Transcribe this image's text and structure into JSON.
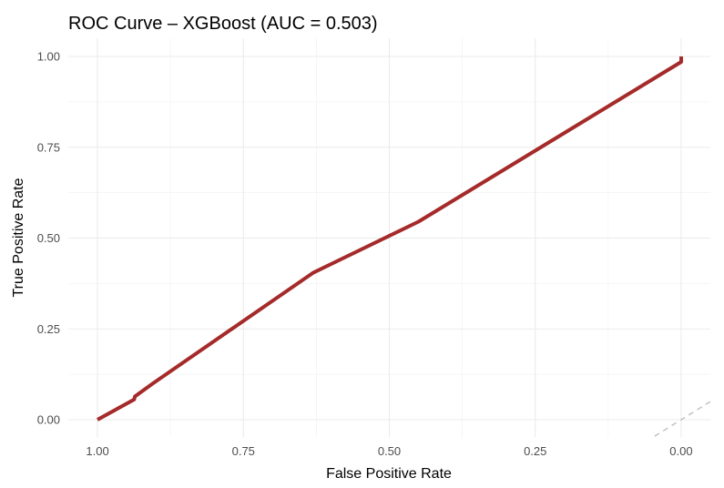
{
  "chart_data": {
    "type": "line",
    "title": "ROC Curve – XGBoost (AUC = 0.503)",
    "xlabel": "False Positive Rate",
    "ylabel": "True Positive Rate",
    "x_reversed": true,
    "xlim": [
      1.05,
      -0.05
    ],
    "ylim": [
      -0.03,
      1.0
    ],
    "x_ticks": [
      1.0,
      0.75,
      0.5,
      0.25,
      0.0
    ],
    "x_tick_labels": [
      "1.00",
      "0.75",
      "0.50",
      "0.25",
      "0.00"
    ],
    "y_ticks": [
      0.0,
      0.25,
      0.5,
      0.75,
      1.0
    ],
    "y_tick_labels": [
      "0.00",
      "0.25",
      "0.50",
      "0.75",
      "1.00"
    ],
    "grid": true,
    "series": [
      {
        "color": "#a52a2a",
        "points": [
          {
            "x": 1.0,
            "y": 0.0
          },
          {
            "x": 0.937,
            "y": 0.056
          },
          {
            "x": 0.936,
            "y": 0.064
          },
          {
            "x": 0.905,
            "y": 0.1
          },
          {
            "x": 0.63,
            "y": 0.405
          },
          {
            "x": 0.45,
            "y": 0.545
          },
          {
            "x": 0.0,
            "y": 0.985
          },
          {
            "x": 0.0,
            "y": 1.0
          }
        ]
      },
      {
        "color": "#bfbfbf",
        "dashed": true,
        "points": [
          {
            "x": 0.06,
            "y": -0.06
          },
          {
            "x": -0.05,
            "y": 0.05
          }
        ]
      }
    ]
  }
}
